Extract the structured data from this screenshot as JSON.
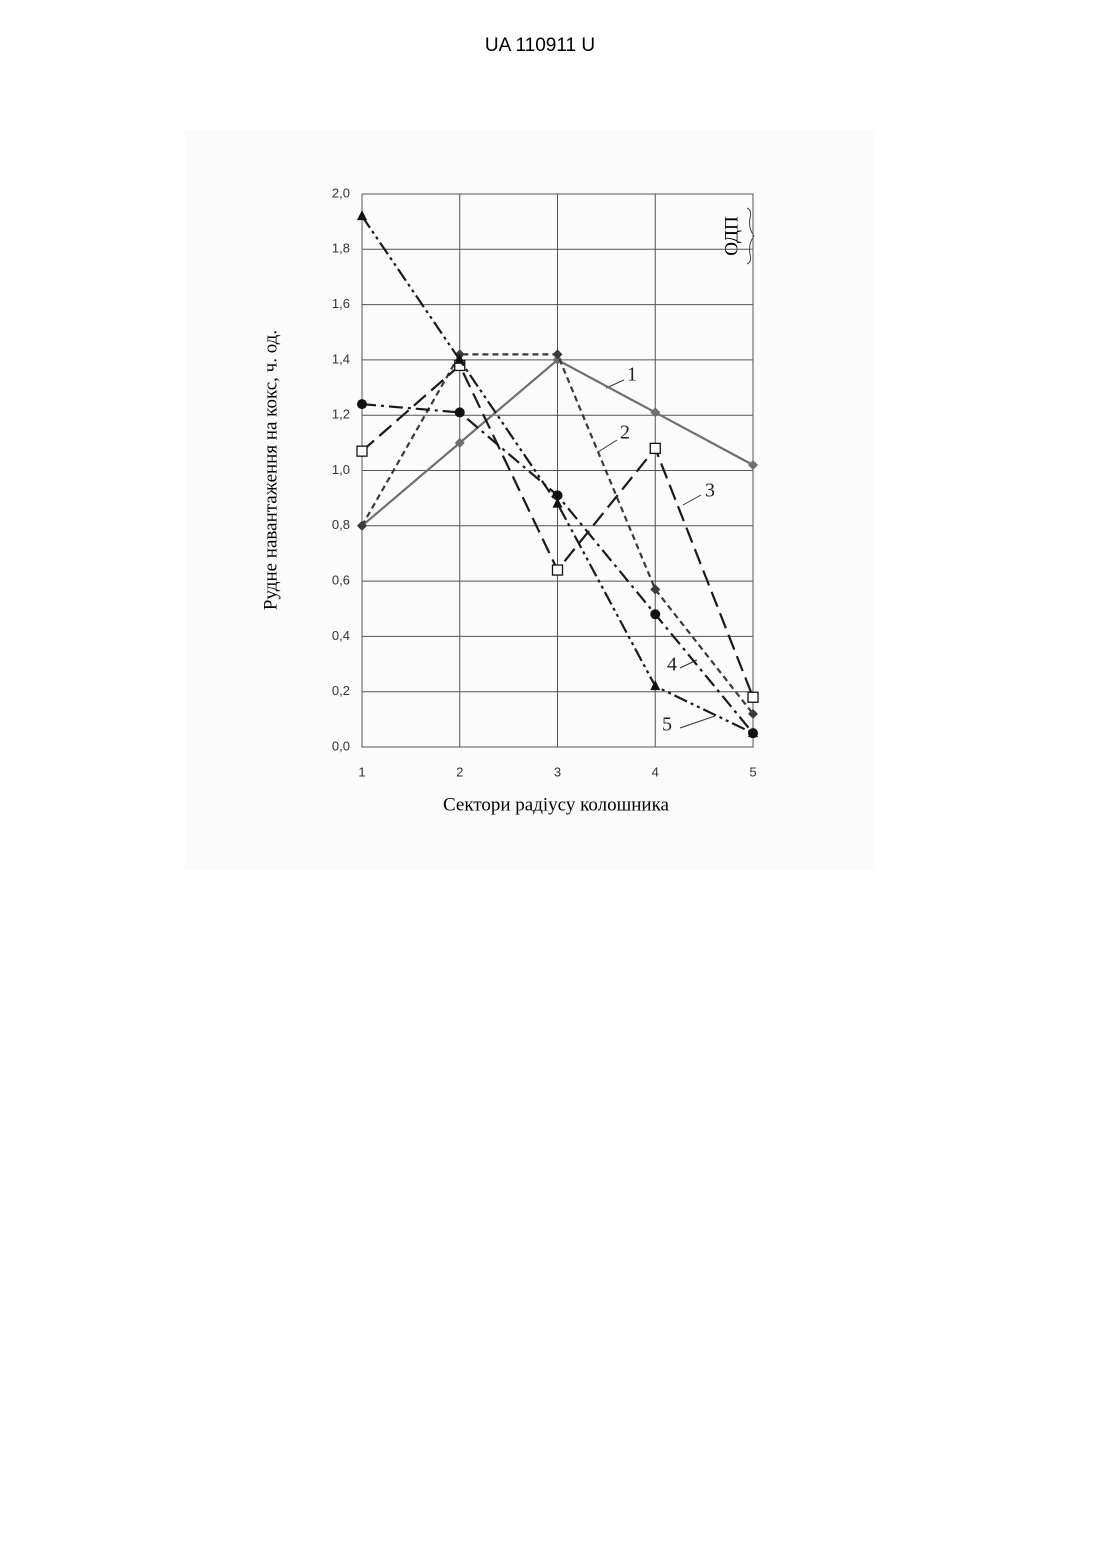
{
  "header": {
    "title": "UA   110911   U"
  },
  "chart_data": {
    "type": "line",
    "y_label": "Рудне навантаження на кокс, ч. од.",
    "x_label": "Сектори радіусу колошника",
    "annotation": "ОДП",
    "x": [
      1,
      2,
      3,
      4,
      5
    ],
    "xlim": [
      1,
      5
    ],
    "xticks": [
      1,
      2,
      3,
      4,
      5
    ],
    "ylim": [
      0,
      2
    ],
    "yticks": [
      {
        "value": 0,
        "label": "0,0"
      },
      {
        "value": 0.2,
        "label": "0,2"
      },
      {
        "value": 0.4,
        "label": "0,4"
      },
      {
        "value": 0.6,
        "label": "0,6"
      },
      {
        "value": 0.8,
        "label": "0,8"
      },
      {
        "value": 1,
        "label": "1,0"
      },
      {
        "value": 1.2,
        "label": "1,2"
      },
      {
        "value": 1.4,
        "label": "1,4"
      },
      {
        "value": 1.6,
        "label": "1,6"
      },
      {
        "value": 1.8,
        "label": "1,8"
      },
      {
        "value": 2,
        "label": "2,0"
      }
    ],
    "grid": true,
    "series": [
      {
        "name": "1",
        "color": "#6f6f6f",
        "dash": "solid",
        "marker": "diamond",
        "values": [
          0.8,
          1.1,
          1.4,
          1.21,
          1.02
        ]
      },
      {
        "name": "2",
        "color": "#3a3a3a",
        "dash": "short-dash",
        "marker": "diamond",
        "values": [
          0.8,
          1.42,
          1.42,
          0.57,
          0.12
        ]
      },
      {
        "name": "3",
        "color": "#1a1a1a",
        "dash": "long-dash",
        "marker": "square",
        "values": [
          1.07,
          1.38,
          0.64,
          1.08,
          0.18
        ]
      },
      {
        "name": "4",
        "color": "#1a1a1a",
        "dash": "dash-dot",
        "marker": "circle",
        "values": [
          1.24,
          1.21,
          0.91,
          0.48,
          0.05
        ]
      },
      {
        "name": "5",
        "color": "#1a1a1a",
        "dash": "dash-dot-dot",
        "marker": "triangle",
        "values": [
          1.92,
          1.4,
          0.88,
          0.22,
          0.05
        ]
      }
    ]
  }
}
